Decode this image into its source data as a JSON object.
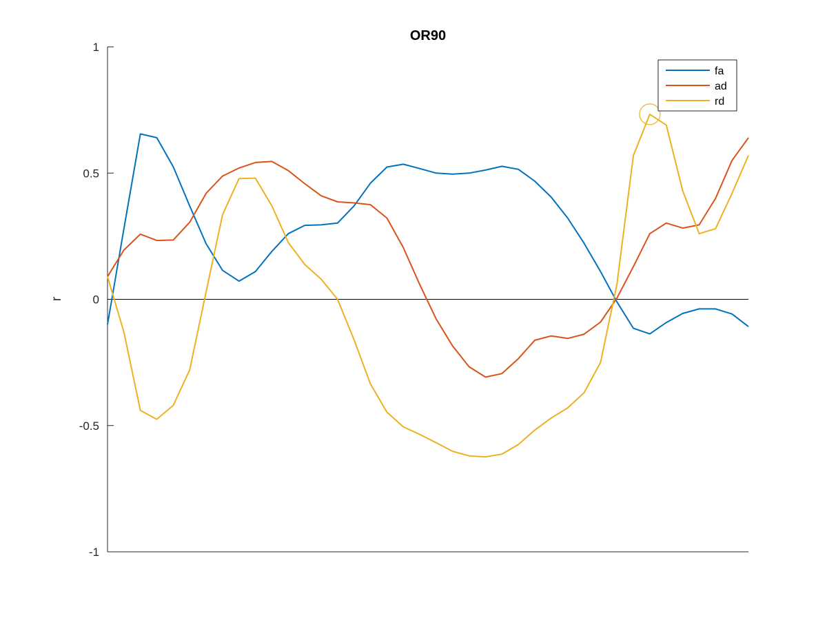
{
  "chart_data": {
    "type": "line",
    "title": "OR90",
    "xlabel": "",
    "ylabel": "r",
    "xlim": [
      1,
      40
    ],
    "ylim": [
      -1,
      1
    ],
    "yticks": [
      -1,
      -0.5,
      0,
      0.5,
      1
    ],
    "ytick_labels": [
      "-1",
      "-0.5",
      "0",
      "0.5",
      "1"
    ],
    "zero_line": true,
    "grid": false,
    "legend_position": "top-right",
    "x": [
      1,
      2,
      3,
      4,
      5,
      6,
      7,
      8,
      9,
      10,
      11,
      12,
      13,
      14,
      15,
      16,
      17,
      18,
      19,
      20,
      21,
      22,
      23,
      24,
      25,
      26,
      27,
      28,
      29,
      30,
      31,
      32,
      33,
      34,
      35,
      36,
      37,
      38,
      39,
      40
    ],
    "series": [
      {
        "name": "fa",
        "color": "#0072BD",
        "values": [
          -0.1,
          0.28,
          0.655,
          0.64,
          0.525,
          0.37,
          0.22,
          0.115,
          0.072,
          0.11,
          0.19,
          0.26,
          0.293,
          0.295,
          0.302,
          0.37,
          0.46,
          0.524,
          0.535,
          0.518,
          0.5,
          0.496,
          0.5,
          0.512,
          0.527,
          0.515,
          0.468,
          0.405,
          0.322,
          0.222,
          0.11,
          -0.01,
          -0.115,
          -0.137,
          -0.092,
          -0.056,
          -0.038,
          -0.038,
          -0.058,
          -0.108
        ]
      },
      {
        "name": "ad",
        "color": "#D95319",
        "values": [
          0.09,
          0.195,
          0.258,
          0.233,
          0.235,
          0.305,
          0.42,
          0.488,
          0.52,
          0.542,
          0.546,
          0.51,
          0.458,
          0.41,
          0.386,
          0.382,
          0.375,
          0.322,
          0.205,
          0.058,
          -0.078,
          -0.185,
          -0.267,
          -0.308,
          -0.294,
          -0.235,
          -0.162,
          -0.145,
          -0.155,
          -0.138,
          -0.09,
          0.005,
          0.13,
          0.26,
          0.302,
          0.282,
          0.295,
          0.4,
          0.55,
          0.64
        ]
      },
      {
        "name": "rd",
        "color": "#EDB120",
        "values": [
          0.09,
          -0.13,
          -0.44,
          -0.475,
          -0.42,
          -0.28,
          0.03,
          0.335,
          0.478,
          0.48,
          0.37,
          0.225,
          0.138,
          0.08,
          0.0,
          -0.16,
          -0.335,
          -0.447,
          -0.505,
          -0.535,
          -0.568,
          -0.602,
          -0.62,
          -0.624,
          -0.613,
          -0.575,
          -0.518,
          -0.47,
          -0.43,
          -0.37,
          -0.25,
          0.06,
          0.57,
          0.733,
          0.69,
          0.43,
          0.26,
          0.28,
          0.42,
          0.57
        ]
      }
    ],
    "annotation": {
      "type": "circle-marker",
      "series": "rd",
      "x": 34,
      "y": 0.733,
      "color": "#EDB120"
    }
  }
}
